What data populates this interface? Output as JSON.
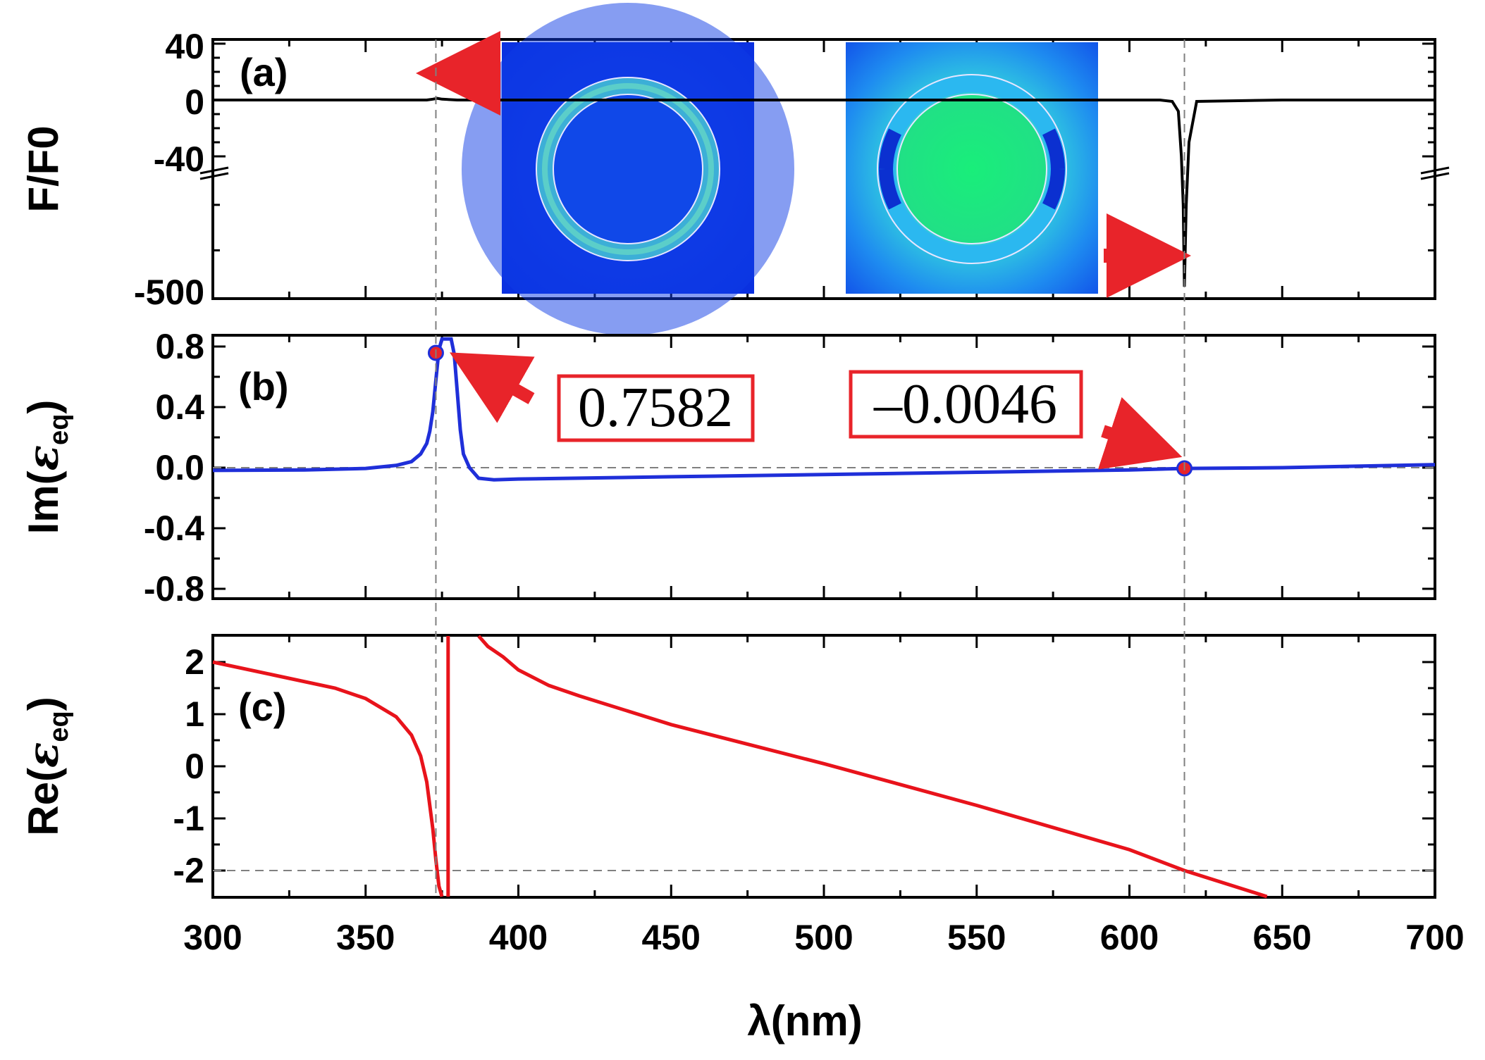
{
  "figure": {
    "xlabel": "λ(nm)"
  },
  "chart_data": [
    {
      "type": "line",
      "panel": "(a)",
      "ylabel": "F/F0",
      "xlim": [
        300,
        700
      ],
      "yticks": [
        "40",
        "0",
        "-40",
        "-500"
      ],
      "axis_break": true,
      "series": [
        {
          "color": "#000000",
          "x": [
            300,
            350,
            370,
            372,
            373.5,
            375,
            380,
            450,
            550,
            610,
            614,
            616,
            617,
            617.6,
            618,
            618.6,
            619.5,
            622,
            650,
            700
          ],
          "y": [
            0,
            0,
            0,
            0.6,
            1.2,
            0.6,
            0,
            0,
            0,
            0,
            -1,
            -8,
            -40,
            -200,
            -470,
            -200,
            -30,
            -1,
            0,
            0
          ]
        }
      ],
      "insets": [
        "field-map-1",
        "field-map-2"
      ],
      "markers": [
        {
          "x": 373
        },
        {
          "x": 618
        }
      ]
    },
    {
      "type": "line",
      "panel": "(b)",
      "ylabel": "Im(εeq)",
      "ylabel_main": "Im(",
      "ylabel_sym": "ε",
      "ylabel_sub": "eq",
      "ylabel_close": ")",
      "xlim": [
        300,
        700
      ],
      "ylim": [
        -0.8,
        0.8
      ],
      "yticks": [
        -0.8,
        -0.4,
        0.0,
        0.4,
        0.8
      ],
      "ytick_labels": [
        "-0.8",
        "-0.4",
        "0.0",
        "0.4",
        "0.8"
      ],
      "reference_line_y": 0.0,
      "series": [
        {
          "color": "#1f2fd9",
          "x": [
            300,
            330,
            350,
            360,
            365,
            368,
            370,
            371,
            372,
            373,
            374,
            375,
            376,
            377,
            378,
            379,
            380,
            381,
            382,
            384,
            387,
            392,
            400,
            450,
            500,
            550,
            600,
            618,
            650,
            700
          ],
          "y": [
            -0.018,
            -0.015,
            -0.005,
            0.015,
            0.04,
            0.09,
            0.16,
            0.24,
            0.37,
            0.58,
            0.78,
            0.85,
            0.85,
            0.85,
            0.85,
            0.75,
            0.5,
            0.25,
            0.09,
            0.0,
            -0.07,
            -0.08,
            -0.075,
            -0.06,
            -0.045,
            -0.03,
            -0.015,
            -0.005,
            0.0,
            0.02
          ]
        }
      ],
      "highlight_points": [
        {
          "x": 373,
          "y": 0.7582,
          "label": "0.7582"
        },
        {
          "x": 618,
          "y": -0.0046,
          "label": "–0.0046"
        }
      ],
      "markers": [
        {
          "x": 373
        },
        {
          "x": 618
        }
      ]
    },
    {
      "type": "line",
      "panel": "(c)",
      "ylabel": "Re(εeq)",
      "ylabel_main": "Re(",
      "ylabel_sym": "ε",
      "ylabel_sub": "eq",
      "ylabel_close": ")",
      "xlim": [
        300,
        700
      ],
      "ylim": [
        -2.5,
        2.5
      ],
      "yticks": [
        -2,
        -1,
        0,
        1,
        2
      ],
      "ytick_labels": [
        "-2",
        "-1",
        "0",
        "1",
        "2"
      ],
      "xticks": [
        300,
        350,
        400,
        450,
        500,
        550,
        600,
        650,
        700
      ],
      "xtick_labels": [
        "300",
        "350",
        "400",
        "450",
        "500",
        "550",
        "600",
        "650",
        "700"
      ],
      "reference_line_y": -2,
      "series": [
        {
          "color": "#e8131b",
          "segments": [
            {
              "x": [
                300,
                320,
                340,
                350,
                360,
                365,
                368,
                370,
                372,
                373,
                374,
                375
              ],
              "y": [
                2.0,
                1.75,
                1.5,
                1.3,
                0.95,
                0.6,
                0.2,
                -0.3,
                -1.2,
                -1.8,
                -2.3,
                -2.5
              ]
            },
            {
              "x": [
                377,
                377,
                377
              ],
              "y": [
                -2.5,
                0,
                2.5
              ]
            },
            {
              "x": [
                387,
                390,
                395,
                400,
                410,
                420,
                450,
                500,
                550,
                600,
                618,
                645
              ],
              "y": [
                2.5,
                2.3,
                2.1,
                1.85,
                1.55,
                1.35,
                0.8,
                0.05,
                -0.75,
                -1.6,
                -2.0,
                -2.5
              ]
            }
          ]
        }
      ],
      "markers": [
        {
          "x": 373
        },
        {
          "x": 618
        }
      ]
    }
  ]
}
